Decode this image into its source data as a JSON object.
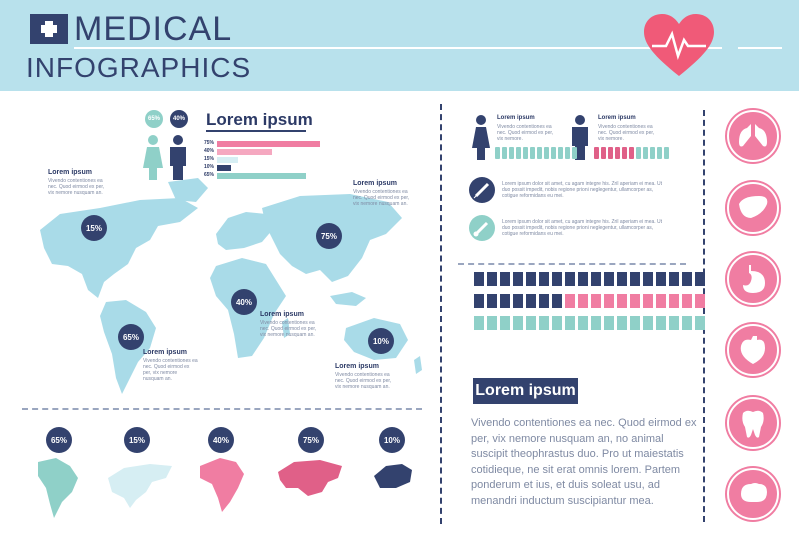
{
  "header": {
    "title_line1": "MEDICAL",
    "title_line2": "INFOGRAPHICS"
  },
  "colors": {
    "navy": "#33426e",
    "pink": "#f07da2",
    "teal": "#8fd0c8",
    "light_blue": "#b8e1ec",
    "map_blue": "#a9dbe8"
  },
  "legend": {
    "female_pct": "65%",
    "male_pct": "40%",
    "title": "Lorem ipsum",
    "bars": [
      {
        "label": "75%",
        "value": 75,
        "color": "#f07da2"
      },
      {
        "label": "40%",
        "value": 40,
        "color": "#f5a8c0"
      },
      {
        "label": "15%",
        "value": 15,
        "color": "#d6eef3"
      },
      {
        "label": "10%",
        "value": 10,
        "color": "#33426e"
      },
      {
        "label": "65%",
        "value": 65,
        "color": "#8fd0c8"
      }
    ]
  },
  "map": {
    "badges": [
      {
        "label": "15%"
      },
      {
        "label": "75%"
      },
      {
        "label": "40%"
      },
      {
        "label": "65%"
      },
      {
        "label": "10%"
      }
    ],
    "notes": [
      {
        "title": "Lorem ipsum",
        "text": "Vivendo contentiones ea nec. Quod eirmod ex per, vix nemore nusquam an."
      },
      {
        "title": "Lorem ipsum",
        "text": "Vivendo contentiones ea nec. Quod eirmod ex per, vix nemore nusquam an."
      },
      {
        "title": "Lorem ipsum",
        "text": "Vivendo contentiones ea nec. Quod eirmod ex per, vix nemore nusquam an."
      },
      {
        "title": "Lorem ipsum",
        "text": "Vivendo contentiones ea nec. Quod eirmod ex per, vix nemore nusquam an."
      },
      {
        "title": "Lorem ipsum",
        "text": "Vivendo contentiones ea nec. Quod eirmod ex per, vix nemore nusquam an."
      }
    ]
  },
  "continents": [
    {
      "label": "65%",
      "name": "south-america",
      "color": "#8fd0c8"
    },
    {
      "label": "15%",
      "name": "north-america",
      "color": "#d6eef3"
    },
    {
      "label": "40%",
      "name": "africa",
      "color": "#f07da2"
    },
    {
      "label": "75%",
      "name": "eurasia",
      "color": "#e06088"
    },
    {
      "label": "10%",
      "name": "australia",
      "color": "#33426e"
    }
  ],
  "gender_stats": {
    "female": {
      "title": "Lorem ipsum",
      "text": "Vivendo contentiones ea nec. Quod eirmod ex per, vix nemore."
    },
    "male": {
      "title": "Lorem ipsum",
      "text": "Vivendo contentiones ea nec. Quod eirmod ex per, vix nemore."
    }
  },
  "info_rows": [
    {
      "icon": "syringe-icon",
      "text": "Lorem ipsum dolor sit amet, cu agam integre his. Zril aperiam ei mea. Ut duo possit impedit, nobis regione prioni neglegentur, ullamcorper as, cotigue reformidans eu mei."
    },
    {
      "icon": "thermometer-icon",
      "text": "Lorem ipsum dolor sit amet, cu agam integre his. Zril aperiam ei mea. Ut duo possit impedit, nobis regione prioni neglegentur, ullamcorper as, cotigue reformidans eu mei."
    }
  ],
  "people_rows": [
    {
      "navy": 18,
      "pink": 0,
      "teal": 0
    },
    {
      "navy": 7,
      "pink": 11,
      "teal": 0
    },
    {
      "navy": 0,
      "pink": 0,
      "teal": 18
    }
  ],
  "summary": {
    "title": "Lorem ipsum",
    "paragraph": "Vivendo contentiones ea nec. Quod eirmod ex per, vix nemore nusquam an, no animal suscipit theophrastus duo. Pro ut maiestatis cotidieque, ne sit erat omnis lorem. Partem ponderum et ius, et duis soleat usu, ad menandri inductum suscipiantur mea."
  },
  "organs": [
    "lungs-icon",
    "liver-icon",
    "stomach-icon",
    "heart-icon",
    "tooth-icon",
    "brain-icon"
  ]
}
